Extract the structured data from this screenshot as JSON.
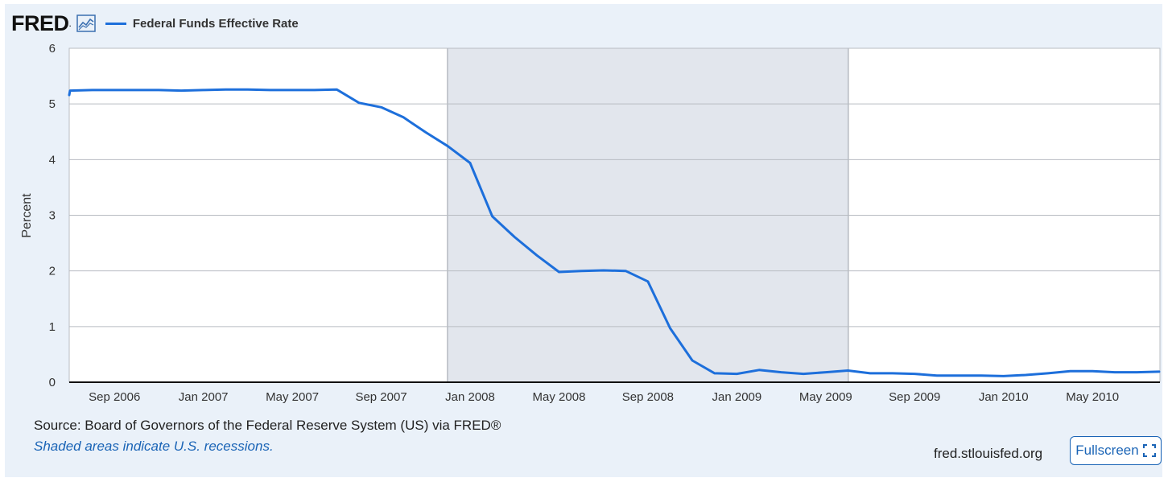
{
  "header": {
    "logo_text": "FRED",
    "logo_mark": ".",
    "legend_label": "Federal Funds Effective Rate",
    "series_color": "#1d6fdb"
  },
  "chart_data": {
    "type": "line",
    "title": "Federal Funds Effective Rate",
    "ylabel": "Percent",
    "xlabel": "",
    "ylim": [
      0,
      6
    ],
    "yticks": [
      "0",
      "1",
      "2",
      "3",
      "4",
      "5",
      "6"
    ],
    "xticks": [
      {
        "date": "2006-09",
        "label": "Sep 2006"
      },
      {
        "date": "2007-01",
        "label": "Jan 2007"
      },
      {
        "date": "2007-05",
        "label": "May 2007"
      },
      {
        "date": "2007-09",
        "label": "Sep 2007"
      },
      {
        "date": "2008-01",
        "label": "Jan 2008"
      },
      {
        "date": "2008-05",
        "label": "May 2008"
      },
      {
        "date": "2008-09",
        "label": "Sep 2008"
      },
      {
        "date": "2009-01",
        "label": "Jan 2009"
      },
      {
        "date": "2009-05",
        "label": "May 2009"
      },
      {
        "date": "2009-09",
        "label": "Sep 2009"
      },
      {
        "date": "2010-01",
        "label": "Jan 2010"
      },
      {
        "date": "2010-05",
        "label": "May 2010"
      }
    ],
    "recession": {
      "start": "2007-12",
      "end": "2009-06"
    },
    "grid": true,
    "series": [
      {
        "name": "Federal Funds Effective Rate",
        "color": "#1d6fdb",
        "x": [
          "2006-07",
          "2006-08",
          "2006-09",
          "2006-10",
          "2006-11",
          "2006-12",
          "2007-01",
          "2007-02",
          "2007-03",
          "2007-04",
          "2007-05",
          "2007-06",
          "2007-07",
          "2007-08",
          "2007-09",
          "2007-10",
          "2007-11",
          "2007-12",
          "2008-01",
          "2008-02",
          "2008-03",
          "2008-04",
          "2008-05",
          "2008-06",
          "2008-07",
          "2008-08",
          "2008-09",
          "2008-10",
          "2008-11",
          "2008-12",
          "2009-01",
          "2009-02",
          "2009-03",
          "2009-04",
          "2009-05",
          "2009-06",
          "2009-07",
          "2009-08",
          "2009-09",
          "2009-10",
          "2009-11",
          "2009-12",
          "2010-01",
          "2010-02",
          "2010-03",
          "2010-04",
          "2010-05",
          "2010-06",
          "2010-07",
          "2010-08"
        ],
        "values": [
          5.24,
          5.25,
          5.25,
          5.25,
          5.25,
          5.24,
          5.25,
          5.26,
          5.26,
          5.25,
          5.25,
          5.25,
          5.26,
          5.02,
          4.94,
          4.76,
          4.49,
          4.24,
          3.94,
          2.98,
          2.61,
          2.28,
          1.98,
          2.0,
          2.01,
          2.0,
          1.81,
          0.97,
          0.39,
          0.16,
          0.15,
          0.22,
          0.18,
          0.15,
          0.18,
          0.21,
          0.16,
          0.16,
          0.15,
          0.12,
          0.12,
          0.12,
          0.11,
          0.13,
          0.16,
          0.2,
          0.2,
          0.18,
          0.18,
          0.19
        ]
      }
    ]
  },
  "footer": {
    "source": "Source: Board of Governors of the Federal Reserve System (US) via FRED®",
    "note": "Shaded areas indicate U.S. recessions.",
    "site": "fred.stlouisfed.org",
    "fullscreen_label": "Fullscreen"
  }
}
